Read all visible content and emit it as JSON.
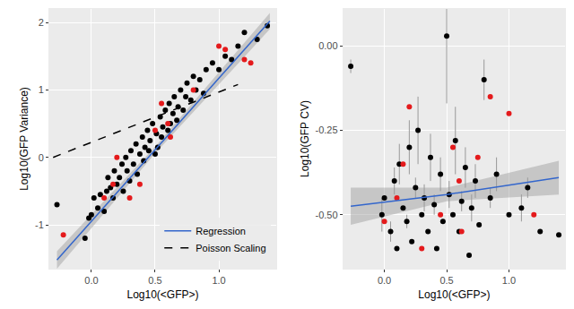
{
  "chart_data": [
    {
      "type": "scatter",
      "x_label": "Log10(<GFP>)",
      "y_label": "Log10(GFP Variance)",
      "xlim": [
        -0.33,
        1.45
      ],
      "ylim": [
        -1.65,
        2.2
      ],
      "xticks": [
        {
          "value": 0,
          "label": "0.0"
        },
        {
          "value": 0.5,
          "label": "0.5"
        },
        {
          "value": 1,
          "label": "1.0"
        }
      ],
      "yticks": [
        -1,
        0,
        1,
        2
      ],
      "grid": true,
      "legend": "bottom right",
      "series": [
        {
          "type": "scatter",
          "marker": "circle",
          "color": "#000000",
          "x": [
            -0.27,
            -0.05,
            -0.02,
            0.0,
            0.02,
            0.05,
            0.07,
            0.1,
            0.12,
            0.13,
            0.15,
            0.17,
            0.18,
            0.2,
            0.22,
            0.24,
            0.25,
            0.27,
            0.28,
            0.3,
            0.31,
            0.33,
            0.35,
            0.36,
            0.38,
            0.4,
            0.41,
            0.42,
            0.44,
            0.45,
            0.46,
            0.48,
            0.5,
            0.51,
            0.52,
            0.54,
            0.55,
            0.56,
            0.58,
            0.6,
            0.61,
            0.62,
            0.64,
            0.65,
            0.67,
            0.68,
            0.7,
            0.72,
            0.74,
            0.75,
            0.78,
            0.8,
            0.82,
            0.85,
            0.88,
            0.9,
            0.95,
            1.0,
            1.05,
            1.1,
            1.15,
            1.2,
            1.3,
            1.38
          ],
          "values": [
            -0.7,
            -1.2,
            -0.9,
            -0.85,
            -0.6,
            -0.75,
            -0.55,
            -0.8,
            -0.5,
            -0.3,
            -0.45,
            -0.6,
            -0.2,
            -0.4,
            -0.3,
            -0.1,
            -0.5,
            0.0,
            -0.2,
            -0.35,
            0.1,
            -0.1,
            0.2,
            -0.25,
            0.05,
            0.3,
            -0.05,
            0.15,
            0.4,
            0.1,
            0.25,
            0.5,
            0.05,
            0.35,
            0.15,
            0.6,
            0.3,
            0.45,
            0.7,
            0.4,
            0.8,
            0.5,
            0.65,
            0.9,
            0.55,
            0.75,
            1.0,
            0.7,
            0.9,
            1.1,
            0.85,
            1.2,
            1.0,
            1.15,
            0.95,
            1.3,
            1.4,
            1.3,
            1.5,
            1.45,
            1.65,
            1.85,
            1.75,
            1.95
          ]
        },
        {
          "type": "scatter",
          "marker": "circle",
          "color": "#e41a1c",
          "x": [
            -0.22,
            0.1,
            0.17,
            0.2,
            0.3,
            0.38,
            0.5,
            0.55,
            0.6,
            0.62,
            0.8,
            1.0,
            1.05,
            1.2,
            1.25
          ],
          "values": [
            -1.15,
            -0.6,
            -0.4,
            0.0,
            -0.6,
            -0.4,
            0.4,
            0.8,
            0.5,
            0.3,
            1.0,
            1.65,
            1.6,
            1.45,
            1.4
          ]
        },
        {
          "name": "Poisson Scaling",
          "type": "line",
          "line_style": "dashed",
          "color": "#000000",
          "x": [
            -0.3,
            1.15
          ],
          "values": [
            0.0,
            1.08
          ]
        },
        {
          "name": "Regression",
          "type": "line",
          "line_style": "solid",
          "color": "#3366cc",
          "x": [
            -0.27,
            0.5,
            1.4
          ],
          "values": [
            -1.52,
            0.11,
            2.02
          ],
          "lower": [
            -1.65,
            0.06,
            1.9
          ],
          "upper": [
            -1.39,
            0.16,
            2.14
          ]
        }
      ]
    },
    {
      "type": "scatter",
      "x_label": "Log10(<GFP>)",
      "y_label": "Log10(GFP CV)",
      "xlim": [
        -0.33,
        1.45
      ],
      "ylim": [
        -0.66,
        0.11
      ],
      "xticks": [
        {
          "value": 0,
          "label": "0.0"
        },
        {
          "value": 0.5,
          "label": "0.5"
        },
        {
          "value": 1,
          "label": "1.0"
        }
      ],
      "yticks": [
        {
          "value": -0.5,
          "label": "-0.50"
        },
        {
          "value": -0.25,
          "label": "-0.25"
        },
        {
          "value": 0,
          "label": "0.00"
        }
      ],
      "grid": true,
      "series": [
        {
          "type": "scatter",
          "marker": "circle",
          "color": "#000000",
          "x": [
            -0.27,
            -0.02,
            0.0,
            0.05,
            0.08,
            0.1,
            0.12,
            0.15,
            0.18,
            0.2,
            0.22,
            0.25,
            0.27,
            0.3,
            0.32,
            0.35,
            0.37,
            0.4,
            0.42,
            0.45,
            0.47,
            0.5,
            0.52,
            0.55,
            0.57,
            0.6,
            0.62,
            0.65,
            0.68,
            0.7,
            0.73,
            0.76,
            0.8,
            0.85,
            0.9,
            1.0,
            1.1,
            1.15,
            1.25,
            1.4
          ],
          "values": [
            -0.06,
            -0.5,
            -0.45,
            -0.55,
            -0.4,
            -0.6,
            -0.35,
            -0.48,
            -0.52,
            -0.3,
            -0.58,
            -0.42,
            -0.25,
            -0.5,
            -0.45,
            -0.55,
            -0.33,
            -0.47,
            -0.6,
            -0.38,
            -0.52,
            0.03,
            -0.44,
            -0.5,
            -0.28,
            -0.55,
            -0.46,
            -0.36,
            -0.62,
            -0.48,
            -0.4,
            -0.53,
            -0.1,
            -0.45,
            -0.38,
            -0.5,
            -0.48,
            -0.42,
            -0.55,
            -0.56
          ],
          "errors": [
            0.02,
            0.05,
            null,
            0.03,
            0.04,
            null,
            0.06,
            null,
            0.02,
            0.08,
            null,
            0.03,
            0.1,
            null,
            0.04,
            null,
            0.07,
            0.03,
            null,
            0.05,
            null,
            0.2,
            0.04,
            null,
            0.1,
            null,
            0.03,
            0.06,
            null,
            0.04,
            0.05,
            null,
            0.06,
            0.03,
            0.05,
            null,
            0.04,
            0.03,
            null,
            null
          ]
        },
        {
          "type": "scatter",
          "marker": "circle",
          "color": "#e41a1c",
          "x": [
            0.0,
            0.1,
            0.15,
            0.2,
            0.3,
            0.45,
            0.55,
            0.6,
            0.62,
            0.75,
            0.85,
            1.0,
            1.2
          ],
          "values": [
            -0.52,
            -0.45,
            -0.35,
            -0.18,
            -0.6,
            -0.5,
            -0.3,
            -0.4,
            -0.55,
            -0.33,
            -0.15,
            -0.2,
            -0.5
          ]
        },
        {
          "type": "line",
          "line_style": "solid",
          "color": "#3366cc",
          "x": [
            -0.27,
            0.5,
            1.4
          ],
          "values": [
            -0.475,
            -0.44,
            -0.39
          ],
          "lower": [
            -0.53,
            -0.46,
            -0.44
          ],
          "upper": [
            -0.42,
            -0.42,
            -0.34
          ]
        }
      ]
    }
  ]
}
